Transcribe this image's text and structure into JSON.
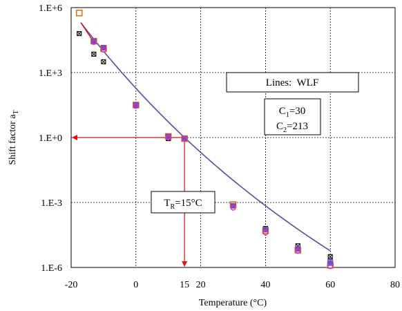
{
  "chart_data": {
    "type": "scatter",
    "xlabel": "Temperature  (°C)",
    "ylabel_main": "Shift  factor  a",
    "ylabel_sub": "T",
    "xlim": [
      -20,
      80
    ],
    "ylim_log10": [
      -6,
      6
    ],
    "y_scale": "log",
    "x_ticks": [
      "-20",
      "0",
      "20",
      "40",
      "60",
      "80"
    ],
    "y_ticks": [
      "1.E-6",
      "1.E-3",
      "1.E+0",
      "1.E+3",
      "1.E+6"
    ],
    "grid": "dashed, both axes",
    "reference_tick": "15",
    "colors": {
      "reference": "#dd1111",
      "wlf_line": "#5a4a99",
      "black": "#111111",
      "orange": "#e07020",
      "purple": "#7a4fb0",
      "magenta": "#cc33cc",
      "blue": "#5566dd"
    },
    "series": [
      {
        "color_key": "black",
        "x": [
          -17.5,
          -13,
          -10,
          0,
          10,
          15,
          30,
          40,
          50,
          60
        ],
        "log10_y": [
          4.8,
          3.85,
          3.5,
          1.5,
          -0.05,
          -0.05,
          -3.15,
          -4.2,
          -5.0,
          -5.5
        ]
      },
      {
        "color_key": "orange",
        "x": [
          -17.5,
          -13,
          -10,
          0,
          10,
          15,
          30,
          40,
          50,
          60
        ],
        "log10_y": [
          5.75,
          4.45,
          4.1,
          1.5,
          0.05,
          -0.05,
          -3.1,
          -4.3,
          -5.2,
          -5.9
        ]
      },
      {
        "color_key": "purple",
        "x": [
          -13,
          -10,
          0,
          10,
          15,
          30,
          40,
          50,
          60
        ],
        "log10_y": [
          4.45,
          4.15,
          1.5,
          0.05,
          -0.05,
          -3.15,
          -4.25,
          -5.15,
          -5.8
        ]
      },
      {
        "color_key": "magenta",
        "x": [
          -13,
          -10,
          0,
          10,
          15,
          30,
          40,
          50,
          60
        ],
        "log10_y": [
          4.4,
          4.05,
          1.45,
          0.0,
          -0.05,
          -3.25,
          -4.4,
          -5.25,
          -5.95
        ]
      },
      {
        "color_key": "blue",
        "x": [
          60
        ],
        "log10_y": [
          -5.75
        ]
      }
    ],
    "wlf": {
      "C1": 30,
      "C2": 213,
      "T_ref": 15,
      "x_from": -17,
      "x_to": 60
    },
    "annotations": {
      "legend_box": "Lines:  WLF",
      "c1_main": "C",
      "c1_sub": "1",
      "c1_value": "=30",
      "c2_main": "C",
      "c2_sub": "2",
      "c2_value": "=213",
      "tr_main": "T",
      "tr_sub": "R",
      "tr_value": "=15°C"
    }
  }
}
